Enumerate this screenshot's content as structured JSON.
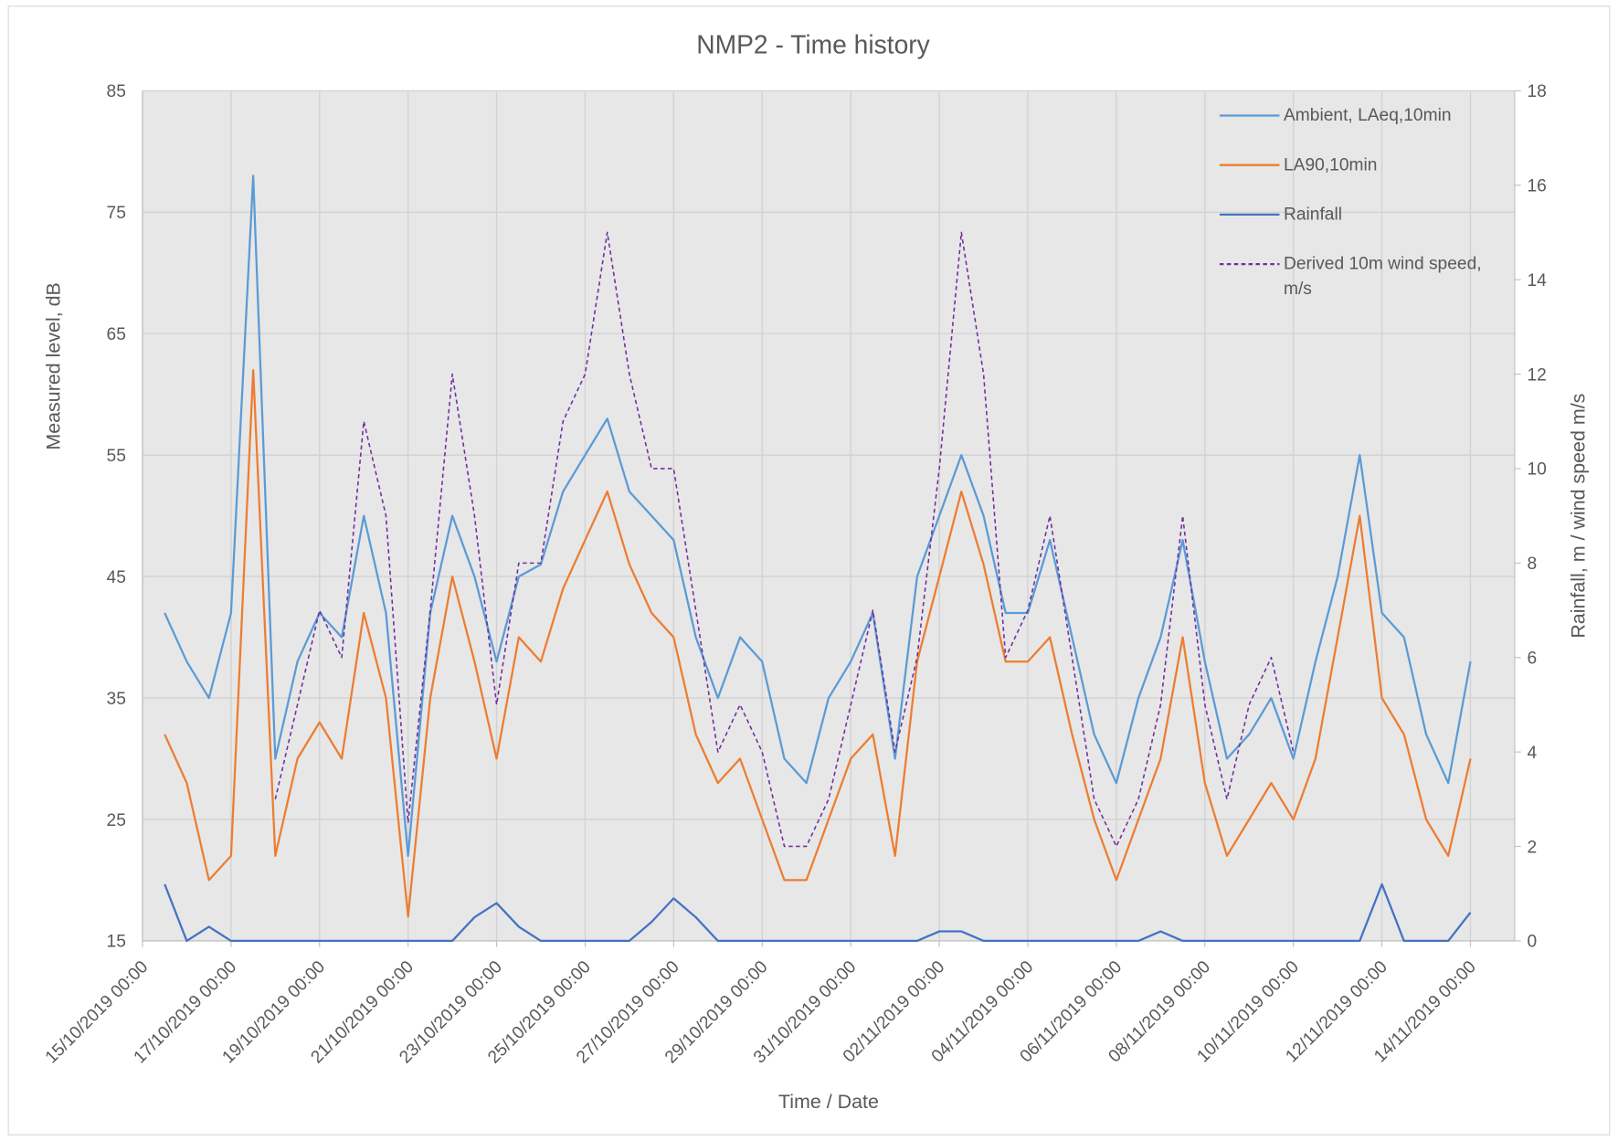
{
  "chart_data": {
    "type": "line",
    "title": "NMP2 - Time history",
    "x_label": "Time / Date",
    "y_label": "Measured level, dB",
    "y2_label": "Rainfall, m / wind speed m/s",
    "x": [
      "2019-10-15 12:00",
      "2019-10-16 00:00",
      "2019-10-16 12:00",
      "2019-10-17 00:00",
      "2019-10-17 12:00",
      "2019-10-18 00:00",
      "2019-10-18 12:00",
      "2019-10-19 00:00",
      "2019-10-19 12:00",
      "2019-10-20 00:00",
      "2019-10-20 12:00",
      "2019-10-21 00:00",
      "2019-10-21 12:00",
      "2019-10-22 00:00",
      "2019-10-22 12:00",
      "2019-10-23 00:00",
      "2019-10-23 12:00",
      "2019-10-24 00:00",
      "2019-10-24 12:00",
      "2019-10-25 00:00",
      "2019-10-25 12:00",
      "2019-10-26 00:00",
      "2019-10-26 12:00",
      "2019-10-27 00:00",
      "2019-10-27 12:00",
      "2019-10-28 00:00",
      "2019-10-28 12:00",
      "2019-10-29 00:00",
      "2019-10-29 12:00",
      "2019-10-30 00:00",
      "2019-10-30 12:00",
      "2019-10-31 00:00",
      "2019-10-31 12:00",
      "2019-11-01 00:00",
      "2019-11-01 12:00",
      "2019-11-02 00:00",
      "2019-11-02 12:00",
      "2019-11-03 00:00",
      "2019-11-03 12:00",
      "2019-11-04 00:00",
      "2019-11-04 12:00",
      "2019-11-05 00:00",
      "2019-11-05 12:00",
      "2019-11-06 00:00",
      "2019-11-06 12:00",
      "2019-11-07 00:00",
      "2019-11-07 12:00",
      "2019-11-08 00:00",
      "2019-11-08 12:00",
      "2019-11-09 00:00",
      "2019-11-09 12:00",
      "2019-11-10 00:00",
      "2019-11-10 12:00",
      "2019-11-11 00:00",
      "2019-11-11 12:00",
      "2019-11-12 00:00",
      "2019-11-12 12:00",
      "2019-11-13 00:00",
      "2019-11-13 12:00",
      "2019-11-14 00:00"
    ],
    "series": [
      {
        "name": "Ambient, LAeq,10min",
        "color": "#5b9bd5",
        "values": [
          42,
          38,
          35,
          42,
          78,
          30,
          38,
          42,
          40,
          50,
          42,
          22,
          42,
          50,
          45,
          38,
          45,
          46,
          52,
          55,
          58,
          52,
          50,
          48,
          40,
          35,
          40,
          38,
          30,
          28,
          35,
          38,
          42,
          30,
          45,
          50,
          55,
          50,
          42,
          42,
          48,
          40,
          32,
          28,
          35,
          40,
          48,
          38,
          30,
          32,
          35,
          30,
          38,
          45,
          55,
          42,
          40,
          32,
          28,
          38
        ]
      },
      {
        "name": "LA90,10min",
        "color": "#ed7d31",
        "values": [
          32,
          28,
          20,
          22,
          62,
          22,
          30,
          33,
          30,
          42,
          35,
          17,
          35,
          45,
          38,
          30,
          40,
          38,
          44,
          48,
          52,
          46,
          42,
          40,
          32,
          28,
          30,
          25,
          20,
          20,
          25,
          30,
          32,
          22,
          38,
          45,
          52,
          46,
          38,
          38,
          40,
          32,
          25,
          20,
          25,
          30,
          40,
          28,
          22,
          25,
          28,
          25,
          30,
          40,
          50,
          35,
          32,
          25,
          22,
          30
        ]
      },
      {
        "name": "Rainfall",
        "color": "#4472c4",
        "axis": "y2",
        "values": [
          1.2,
          0,
          0.3,
          0,
          0,
          0,
          0,
          0,
          0,
          0,
          0,
          0,
          0,
          0,
          0.5,
          0.8,
          0.3,
          0,
          0,
          0,
          0,
          0,
          0.4,
          0.9,
          0.5,
          0,
          0,
          0,
          0,
          0,
          0,
          0,
          0,
          0,
          0,
          0.2,
          0.2,
          0,
          0,
          0,
          0,
          0,
          0,
          0,
          0,
          0.2,
          0,
          0,
          0,
          0,
          0,
          0,
          0,
          0,
          0,
          1.2,
          0,
          0,
          0,
          0.6
        ]
      },
      {
        "name": "Derived 10m wind speed, m/s",
        "color": "#7030a0",
        "axis": "y2",
        "dashed": true,
        "values": [
          null,
          null,
          null,
          null,
          null,
          3,
          5,
          7,
          6,
          11,
          9,
          2.5,
          7,
          12,
          9,
          5,
          8,
          8,
          11,
          12,
          15,
          12,
          10,
          10,
          7,
          4,
          5,
          4,
          2,
          2,
          3,
          5,
          7,
          4,
          6,
          10,
          15,
          12,
          6,
          7,
          9,
          6,
          3,
          2,
          3,
          5,
          9,
          5,
          3,
          5,
          6,
          4,
          null,
          null,
          null,
          null,
          null,
          null,
          null,
          null
        ]
      }
    ],
    "xlim": [
      "2019-10-15 00:00",
      "2019-11-15 00:00"
    ],
    "xticks": [
      {
        "value": "2019-10-15 00:00",
        "label": "15/10/2019 00:00"
      },
      {
        "value": "2019-10-17 00:00",
        "label": "17/10/2019 00:00"
      },
      {
        "value": "2019-10-19 00:00",
        "label": "19/10/2019 00:00"
      },
      {
        "value": "2019-10-21 00:00",
        "label": "21/10/2019 00:00"
      },
      {
        "value": "2019-10-23 00:00",
        "label": "23/10/2019 00:00"
      },
      {
        "value": "2019-10-25 00:00",
        "label": "25/10/2019 00:00"
      },
      {
        "value": "2019-10-27 00:00",
        "label": "27/10/2019 00:00"
      },
      {
        "value": "2019-10-29 00:00",
        "label": "29/10/2019 00:00"
      },
      {
        "value": "2019-10-31 00:00",
        "label": "31/10/2019 00:00"
      },
      {
        "value": "2019-11-02 00:00",
        "label": "02/11/2019 00:00"
      },
      {
        "value": "2019-11-04 00:00",
        "label": "04/11/2019 00:00"
      },
      {
        "value": "2019-11-06 00:00",
        "label": "06/11/2019 00:00"
      },
      {
        "value": "2019-11-08 00:00",
        "label": "08/11/2019 00:00"
      },
      {
        "value": "2019-11-10 00:00",
        "label": "10/11/2019 00:00"
      },
      {
        "value": "2019-11-12 00:00",
        "label": "12/11/2019 00:00"
      },
      {
        "value": "2019-11-14 00:00",
        "label": "14/11/2019 00:00"
      }
    ],
    "ylim": [
      15,
      85
    ],
    "yticks": [
      15,
      25,
      35,
      45,
      55,
      65,
      75,
      85
    ],
    "y2lim": [
      0,
      18
    ],
    "y2ticks": [
      0,
      2,
      4,
      6,
      8,
      10,
      12,
      14,
      16,
      18
    ],
    "grid": true,
    "legend": "upper right"
  }
}
